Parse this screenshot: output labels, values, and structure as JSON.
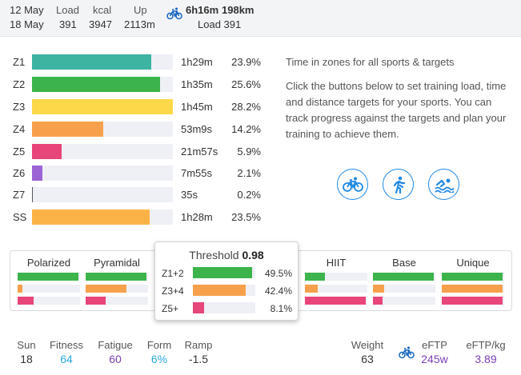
{
  "header": {
    "date_from": "12 May",
    "date_to": "18 May",
    "load_label": "Load",
    "load_value": "391",
    "kcal_label": "kcal",
    "kcal_value": "3947",
    "up_label": "Up",
    "up_value": "2113m",
    "ride_time": "6h16m",
    "ride_distance": "198km",
    "ride_load": "Load 391",
    "ride_icon": "bicycle-icon"
  },
  "zones": [
    {
      "label": "Z1",
      "time": "1h29m",
      "pct": "23.9%",
      "value": 23.9,
      "color": "#3db3a2"
    },
    {
      "label": "Z2",
      "time": "1h35m",
      "pct": "25.6%",
      "value": 25.6,
      "color": "#3cb44b"
    },
    {
      "label": "Z3",
      "time": "1h45m",
      "pct": "28.2%",
      "value": 28.2,
      "color": "#fdd94a"
    },
    {
      "label": "Z4",
      "time": "53m9s",
      "pct": "14.2%",
      "value": 14.2,
      "color": "#f7a04c"
    },
    {
      "label": "Z5",
      "time": "21m57s",
      "pct": "5.9%",
      "value": 5.9,
      "color": "#e8457a"
    },
    {
      "label": "Z6",
      "time": "7m55s",
      "pct": "2.1%",
      "value": 2.1,
      "color": "#9c63d6"
    },
    {
      "label": "Z7",
      "time": "35s",
      "pct": "0.2%",
      "value": 0.2,
      "color": "#555555"
    },
    {
      "label": "SS",
      "time": "1h28m",
      "pct": "23.5%",
      "value": 23.5,
      "color": "#fbb347"
    }
  ],
  "zone_scale_max": 28.2,
  "info": {
    "heading": "Time in zones for all sports & targets",
    "body": "Click the buttons below to set training load, time and distance targets for your sports. You can track progress against the targets and plan your training to achieve them."
  },
  "sports": [
    {
      "icon": "bicycle-icon",
      "name": "ride-target-button"
    },
    {
      "icon": "running-icon",
      "name": "run-target-button"
    },
    {
      "icon": "swimming-icon",
      "name": "swim-target-button"
    }
  ],
  "models": [
    {
      "name": "Polarized",
      "bars": [
        0.97,
        0.08,
        0.25
      ]
    },
    {
      "name": "Pyramidal",
      "bars": [
        0.97,
        0.65,
        0.32
      ]
    },
    {
      "name": "HIIT",
      "bars": [
        0.32,
        0.2,
        0.97
      ]
    },
    {
      "name": "Base",
      "bars": [
        0.97,
        0.18,
        0.15
      ]
    },
    {
      "name": "Unique",
      "bars": [
        0.97,
        0.97,
        0.97
      ]
    }
  ],
  "model_colors": [
    "#3cb44b",
    "#f7a04c",
    "#e8457a"
  ],
  "popup": {
    "title": "Threshold",
    "score": "0.98",
    "rows": [
      {
        "label": "Z1+2",
        "pct": "49.5%",
        "value": 0.95,
        "color": "#3cb44b"
      },
      {
        "label": "Z3+4",
        "pct": "42.4%",
        "value": 0.85,
        "color": "#f7a04c"
      },
      {
        "label": "Z5+",
        "pct": "8.1%",
        "value": 0.18,
        "color": "#e8457a"
      }
    ]
  },
  "stats": {
    "day_label": "Sun",
    "day_value": "18",
    "fitness_label": "Fitness",
    "fitness_value": "64",
    "fatigue_label": "Fatigue",
    "fatigue_value": "60",
    "form_label": "Form",
    "form_value": "6%",
    "ramp_label": "Ramp",
    "ramp_value": "-1.5",
    "weight_label": "Weight",
    "weight_value": "63",
    "eftp_label": "eFTP",
    "eftp_value": "245w",
    "eftpkg_label": "eFTP/kg",
    "eftpkg_value": "3.89"
  },
  "colors": {
    "accent_blue": "#1e88e5",
    "fitness": "#29a9e0",
    "fatigue": "#7b3fb8",
    "form": "#29a9e0"
  }
}
